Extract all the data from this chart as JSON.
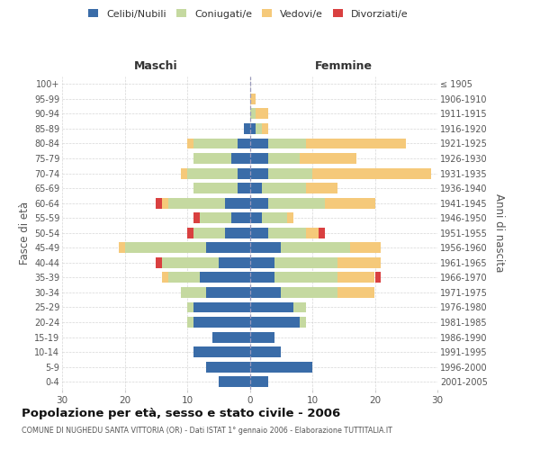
{
  "age_groups": [
    "100+",
    "95-99",
    "90-94",
    "85-89",
    "80-84",
    "75-79",
    "70-74",
    "65-69",
    "60-64",
    "55-59",
    "50-54",
    "45-49",
    "40-44",
    "35-39",
    "30-34",
    "25-29",
    "20-24",
    "15-19",
    "10-14",
    "5-9",
    "0-4"
  ],
  "birth_years": [
    "≤ 1905",
    "1906-1910",
    "1911-1915",
    "1916-1920",
    "1921-1925",
    "1926-1930",
    "1931-1935",
    "1936-1940",
    "1941-1945",
    "1946-1950",
    "1951-1955",
    "1956-1960",
    "1961-1965",
    "1966-1970",
    "1971-1975",
    "1976-1980",
    "1981-1985",
    "1986-1990",
    "1991-1995",
    "1996-2000",
    "2001-2005"
  ],
  "male_celibi": [
    0,
    0,
    0,
    1,
    2,
    3,
    2,
    2,
    4,
    3,
    4,
    7,
    5,
    8,
    7,
    9,
    9,
    6,
    9,
    7,
    5
  ],
  "male_coniugati": [
    0,
    0,
    0,
    0,
    7,
    6,
    8,
    7,
    9,
    5,
    5,
    13,
    9,
    5,
    4,
    1,
    1,
    0,
    0,
    0,
    0
  ],
  "male_vedovi": [
    0,
    0,
    0,
    0,
    1,
    0,
    1,
    0,
    1,
    0,
    0,
    1,
    0,
    1,
    0,
    0,
    0,
    0,
    0,
    0,
    0
  ],
  "male_divorziati": [
    0,
    0,
    0,
    0,
    0,
    0,
    0,
    0,
    1,
    1,
    1,
    0,
    1,
    0,
    0,
    0,
    0,
    0,
    0,
    0,
    0
  ],
  "female_celibi": [
    0,
    0,
    0,
    1,
    3,
    3,
    3,
    2,
    3,
    2,
    3,
    5,
    4,
    4,
    5,
    7,
    8,
    4,
    5,
    10,
    3
  ],
  "female_coniugati": [
    0,
    0,
    1,
    1,
    6,
    5,
    7,
    7,
    9,
    4,
    6,
    11,
    10,
    10,
    9,
    2,
    1,
    0,
    0,
    0,
    0
  ],
  "female_vedovi": [
    0,
    1,
    2,
    1,
    16,
    9,
    19,
    5,
    8,
    1,
    2,
    5,
    7,
    6,
    6,
    0,
    0,
    0,
    0,
    0,
    0
  ],
  "female_divorziati": [
    0,
    0,
    0,
    0,
    0,
    0,
    0,
    0,
    0,
    0,
    1,
    0,
    0,
    1,
    0,
    0,
    0,
    0,
    0,
    0,
    0
  ],
  "color_celibi": "#3a6ca8",
  "color_coniugati": "#c5d9a0",
  "color_vedovi": "#f5c97a",
  "color_divorziati": "#d94040",
  "xlim": 30,
  "title": "Popolazione per età, sesso e stato civile - 2006",
  "subtitle": "COMUNE DI NUGHEDU SANTA VITTORIA (OR) - Dati ISTAT 1° gennaio 2006 - Elaborazione TUTTITALIA.IT",
  "ylabel_left": "Fasce di età",
  "ylabel_right": "Anni di nascita",
  "xlabel_maschi": "Maschi",
  "xlabel_femmine": "Femmine",
  "bg_color": "#ffffff",
  "grid_color": "#cccccc"
}
